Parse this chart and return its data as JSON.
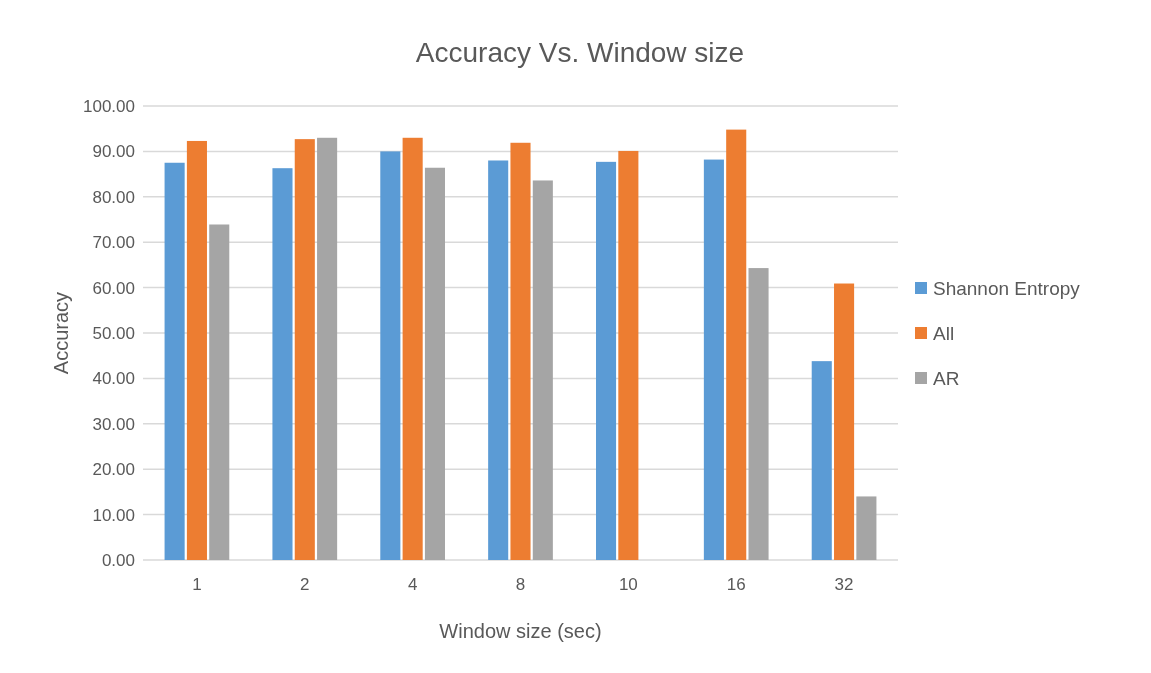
{
  "chart_data": {
    "type": "bar",
    "title": "Accuracy Vs. Window size",
    "xlabel": "Window size (sec)",
    "ylabel": "Accuracy",
    "categories": [
      "1",
      "2",
      "4",
      "8",
      "10",
      "16",
      "32"
    ],
    "series": [
      {
        "name": "Shannon Entropy",
        "color": "#5b9bd5",
        "values": [
          87.5,
          86.3,
          90.0,
          88.0,
          87.7,
          88.2,
          43.8
        ]
      },
      {
        "name": "All",
        "color": "#ed7d31",
        "values": [
          92.3,
          92.7,
          93.0,
          91.9,
          90.1,
          94.8,
          60.9
        ]
      },
      {
        "name": "AR",
        "color": "#a5a5a5",
        "values": [
          73.9,
          93.0,
          86.4,
          83.6,
          null,
          64.3,
          14.0
        ]
      }
    ],
    "ylim": [
      0,
      100
    ],
    "yticks": [
      {
        "value": 0,
        "label": "0.00"
      },
      {
        "value": 10,
        "label": "10.00"
      },
      {
        "value": 20,
        "label": "20.00"
      },
      {
        "value": 30,
        "label": "30.00"
      },
      {
        "value": 40,
        "label": "40.00"
      },
      {
        "value": 50,
        "label": "50.00"
      },
      {
        "value": 60,
        "label": "60.00"
      },
      {
        "value": 70,
        "label": "70.00"
      },
      {
        "value": 80,
        "label": "80.00"
      },
      {
        "value": 90,
        "label": "90.00"
      },
      {
        "value": 100,
        "label": "100.00"
      }
    ],
    "grid": "y",
    "legend": "right"
  }
}
